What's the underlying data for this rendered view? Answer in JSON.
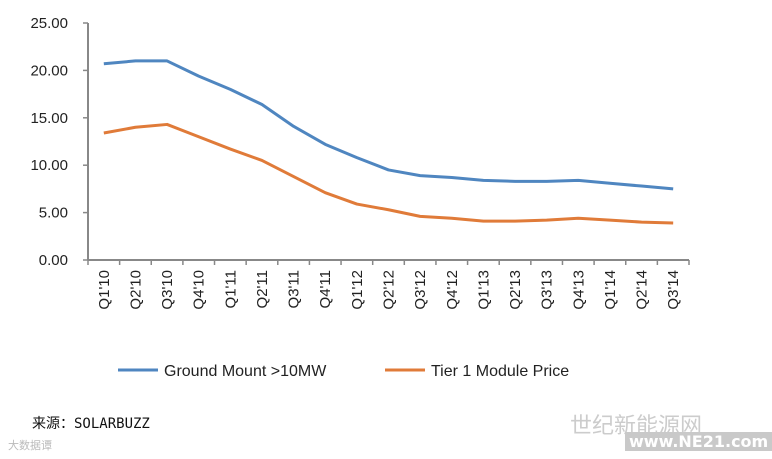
{
  "chart_data": {
    "type": "line",
    "title": "",
    "xlabel": "",
    "ylabel": "",
    "categories": [
      "Q1'10",
      "Q2'10",
      "Q3'10",
      "Q4'10",
      "Q1'11",
      "Q2'11",
      "Q3'11",
      "Q4'11",
      "Q1'12",
      "Q2'12",
      "Q3'12",
      "Q4'12",
      "Q1'13",
      "Q2'13",
      "Q3'13",
      "Q4'13",
      "Q1'14",
      "Q2'14",
      "Q3'14"
    ],
    "ylim": [
      0,
      25
    ],
    "yticks": [
      "0.00",
      "5.00",
      "10.00",
      "15.00",
      "20.00",
      "25.00"
    ],
    "legend_position": "bottom",
    "series": [
      {
        "name": "Ground Mount >10MW",
        "color": "#4f86c0",
        "values": [
          20.7,
          21.0,
          21.0,
          19.4,
          18.0,
          16.4,
          14.1,
          12.2,
          10.8,
          9.5,
          8.9,
          8.7,
          8.4,
          8.3,
          8.3,
          8.4,
          8.1,
          7.8,
          7.5
        ]
      },
      {
        "name": "Tier 1 Module Price",
        "color": "#e07b39",
        "values": [
          13.4,
          14.0,
          14.3,
          13.0,
          11.7,
          10.5,
          8.8,
          7.1,
          5.9,
          5.3,
          4.6,
          4.4,
          4.1,
          4.1,
          4.2,
          4.4,
          4.2,
          4.0,
          3.9
        ]
      }
    ]
  },
  "source": "来源：SOLARBUZZ",
  "watermarks": {
    "left": "大数据谭",
    "right": "世纪新能源网",
    "url": "www.NE21.com"
  }
}
